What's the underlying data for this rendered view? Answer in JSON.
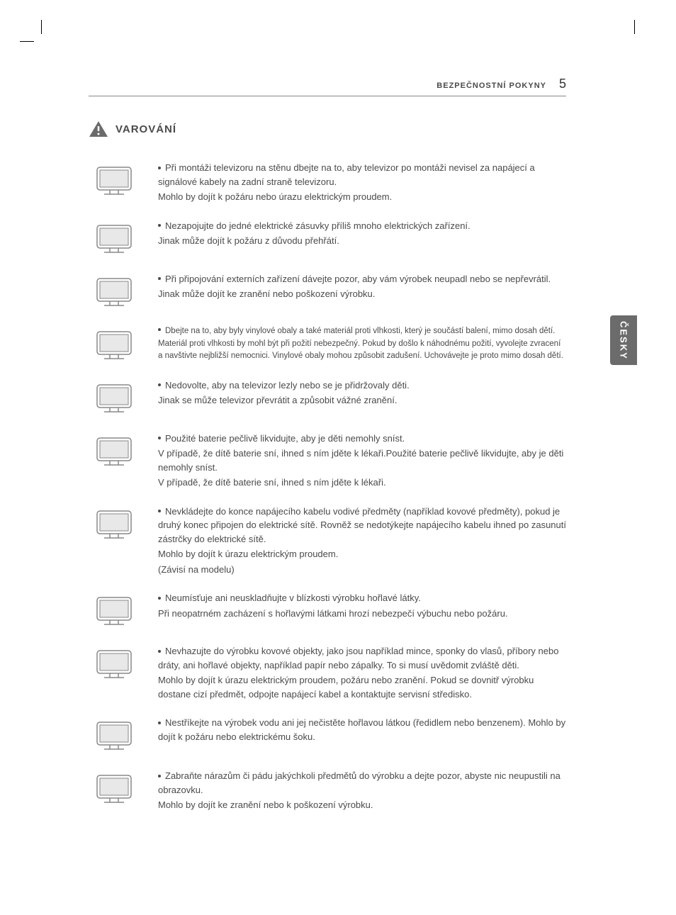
{
  "header": {
    "title": "BEZPEČNOSTNÍ POKYNY",
    "page_number": "5"
  },
  "language_tab": "ČESKY",
  "warning": {
    "label": "VAROVÁNÍ",
    "items": [
      {
        "lines": [
          "Při montáži televizoru na stěnu dbejte na to, aby televizor po montáži nevisel za napájecí a signálové kabely na zadní straně televizoru.",
          "Mohlo by dojít k požáru nebo úrazu elektrickým proudem."
        ]
      },
      {
        "lines": [
          "Nezapojujte do jedné elektrické zásuvky příliš mnoho elektrických zařízení.",
          "Jinak může dojít k požáru z důvodu přehřátí."
        ]
      },
      {
        "lines": [
          "Při připojování externích zařízení dávejte pozor, aby vám výrobek neupadl nebo se nepřevrátil.",
          "Jinak může dojít ke zranění nebo poškození výrobku."
        ]
      },
      {
        "small": true,
        "lines": [
          "Dbejte na to, aby byly vinylové obaly a také materiál proti vlhkosti, který je součástí balení, mimo dosah dětí.",
          "Materiál proti vlhkosti by mohl být při požití nebezpečný. Pokud by došlo k náhodnému požití, vyvolejte zvracení a navštivte nejbližší nemocnici. Vinylové obaly mohou způsobit zadušení. Uchovávejte je proto mimo dosah dětí."
        ]
      },
      {
        "lines": [
          "Nedovolte, aby na televizor lezly nebo se je přidržovaly děti.",
          "Jinak se může televizor převrátit a způsobit vážné zranění."
        ]
      },
      {
        "lines": [
          "Použité baterie pečlivě likvidujte, aby je děti nemohly sníst.",
          "V případě, že dítě baterie sní, ihned s ním jděte k lékaři.Použité baterie pečlivě likvidujte, aby je děti nemohly sníst.",
          "V případě, že dítě baterie sní, ihned s ním jděte k lékaři."
        ]
      },
      {
        "lines": [
          "Nevkládejte do konce napájecího kabelu vodivé předměty (například kovové předměty), pokud je druhý konec připojen do elektrické sítě. Rovněž se nedotýkejte napájecího kabelu ihned po zasunutí zástrčky do elektrické sítě.",
          "Mohlo by dojít k úrazu elektrickým proudem.",
          "(Závisí na modelu)"
        ]
      },
      {
        "lines": [
          "Neumísťuje ani neuskladňujte v blízkosti výrobku hořlavé látky.",
          "Při neopatrném zacházení s hořlavými látkami hrozí nebezpečí výbuchu nebo požáru."
        ]
      },
      {
        "lines": [
          "Nevhazujte do výrobku kovové objekty, jako jsou například mince, sponky do vlasů, příbory nebo dráty, ani hořlavé objekty, například papír nebo zápalky. To si musí uvědomit zvláště děti.",
          "Mohlo by dojít k úrazu elektrickým proudem, požáru nebo zranění. Pokud se dovnitř výrobku dostane cizí předmět, odpojte napájecí kabel a kontaktujte servisní středisko."
        ]
      },
      {
        "lines": [
          "Nestříkejte na výrobek vodu ani jej nečistěte hořlavou látkou (ředidlem nebo benzenem). Mohlo by dojít k požáru nebo elektrickému šoku."
        ]
      },
      {
        "lines": [
          "Zabraňte nárazům či pádu jakýchkoli předmětů do výrobku a dejte pozor, abyste nic neupustili na obrazovku.",
          "Mohlo by dojít ke zranění nebo k poškození výrobku."
        ]
      }
    ]
  }
}
